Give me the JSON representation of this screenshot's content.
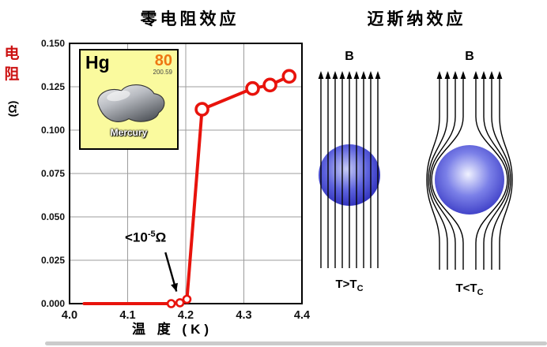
{
  "page": {
    "left_title": "零电阻效应",
    "right_title": "迈斯纳效应"
  },
  "chart_data": {
    "type": "line",
    "title": "零电阻效应",
    "xlabel": "温 度 (K)",
    "ylabel": "电阻 (Ω)",
    "ylabel_parts": {
      "char1": "电",
      "char2": "阻",
      "unit": "(Ω)"
    },
    "xlim": [
      4.0,
      4.4
    ],
    "ylim": [
      0,
      0.15
    ],
    "x_ticks": [
      "4.0",
      "4.1",
      "4.2",
      "4.3",
      "4.4"
    ],
    "y_ticks": [
      "0.000",
      "0.025",
      "0.050",
      "0.075",
      "0.100",
      "0.125",
      "0.150"
    ],
    "grid": true,
    "line_color": "#e8130c",
    "series": [
      {
        "name": "Hg",
        "points": [
          [
            4.025,
            0
          ],
          [
            4.175,
            0
          ],
          [
            4.19,
            0.0005
          ],
          [
            4.202,
            0.0025
          ],
          [
            4.228,
            0.112
          ],
          [
            4.315,
            0.124
          ],
          [
            4.345,
            0.126
          ],
          [
            4.378,
            0.131
          ]
        ],
        "markers": [
          [
            4.175,
            0,
            "small"
          ],
          [
            4.19,
            0.0005,
            "small"
          ],
          [
            4.202,
            0.0025,
            "small"
          ],
          [
            4.228,
            0.112,
            "large"
          ],
          [
            4.315,
            0.124,
            "large"
          ],
          [
            4.345,
            0.126,
            "large"
          ],
          [
            4.378,
            0.131,
            "large"
          ]
        ]
      }
    ],
    "annotation": {
      "text": "<10⁻⁵Ω",
      "base": "<10",
      "exp": "-5",
      "unit": "Ω",
      "arrow_from": [
        4.165,
        0.0295
      ],
      "arrow_to": [
        4.184,
        0.007
      ]
    }
  },
  "element_tile": {
    "symbol": "Hg",
    "number": "80",
    "mass": "200.59",
    "name": "Mercury"
  },
  "meissner": {
    "field_label": "B",
    "above_tc": {
      "base": "T>T",
      "sub": "C"
    },
    "below_tc": {
      "base": "T<T",
      "sub": "C"
    }
  }
}
